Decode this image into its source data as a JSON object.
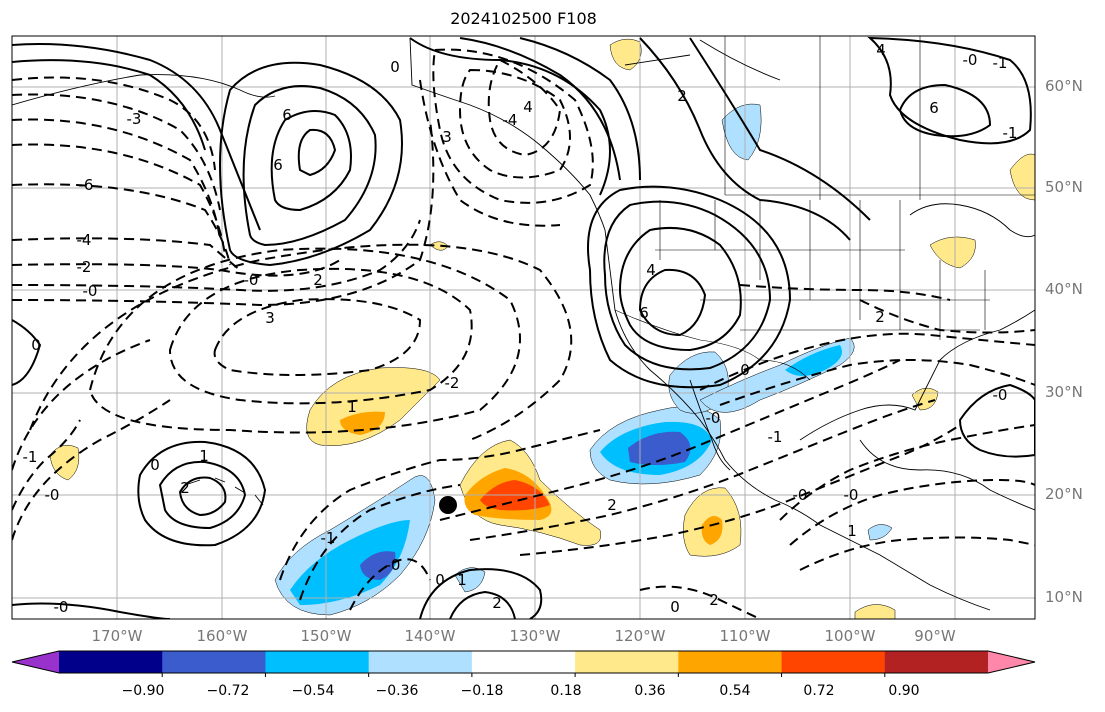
{
  "title": "2024102500 F108",
  "lat_labels": [
    "60°N",
    "50°N",
    "40°N",
    "30°N",
    "20°N",
    "10°N"
  ],
  "lon_labels": [
    "170°W",
    "160°W",
    "150°W",
    "140°W",
    "130°W",
    "120°W",
    "110°W",
    "100°W",
    "90°W"
  ],
  "colorbar": {
    "ticks": [
      "−0.90",
      "−0.72",
      "−0.54",
      "−0.36",
      "−0.18",
      "0.18",
      "0.36",
      "0.54",
      "0.72",
      "0.90"
    ],
    "colors": [
      "#9932cc",
      "#00008b",
      "#3a5ccc",
      "#00bfff",
      "#b0e0ff",
      "#ffffff",
      "#ffe98a",
      "#ffa500",
      "#ff4500",
      "#b22222",
      "#ff88aa"
    ]
  },
  "contour_labels": [
    "4",
    "6",
    "6",
    "4",
    "2",
    "3",
    "2",
    "1",
    "0",
    "-0",
    "2",
    "1",
    "2",
    "-0",
    "0",
    "1",
    "4",
    "6",
    "6",
    "-0",
    "-4",
    "-2",
    "-0",
    "-6",
    "-3",
    "-1",
    "-2",
    "-1",
    "-0",
    "0",
    "-0",
    "-1",
    "-0",
    "1",
    "2",
    "-1",
    "0",
    "2",
    "-4",
    "-1",
    "-0",
    "0",
    "0",
    "-0",
    "3",
    "-0",
    "2"
  ]
}
